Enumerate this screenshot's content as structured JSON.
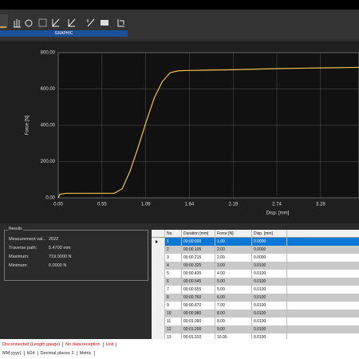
{
  "toolbar": {
    "tab": "GRAPHIC"
  },
  "chart_data": {
    "type": "line",
    "x_label": "Disp. [mm]",
    "y_label": "Force [N]",
    "x": [
      0,
      0.02,
      0.1,
      0.4,
      0.7,
      0.8,
      0.9,
      1.0,
      1.1,
      1.2,
      1.3,
      1.4,
      1.5,
      1.64,
      2.19,
      2.74,
      3.28,
      3.76
    ],
    "series": [
      {
        "color": "#f2c14e",
        "values": [
          0,
          20,
          25,
          25,
          25,
          50,
          150,
          280,
          420,
          550,
          640,
          690,
          700,
          702,
          706,
          712,
          716,
          719
        ]
      }
    ],
    "xlim": [
      0,
      3.76
    ],
    "ylim": [
      0,
      800
    ],
    "xticks": [
      {
        "value": 0,
        "label": "0.00"
      },
      {
        "value": 0.547,
        "label": "0.55"
      },
      {
        "value": 1.093,
        "label": "1.09"
      },
      {
        "value": 1.64,
        "label": "1.64"
      },
      {
        "value": 2.187,
        "label": "2.19"
      },
      {
        "value": 2.733,
        "label": "2.74"
      },
      {
        "value": 3.28,
        "label": "3.28"
      }
    ],
    "yticks": [
      {
        "value": 0,
        "label": "0.00"
      },
      {
        "value": 200,
        "label": "200.00"
      },
      {
        "value": 400,
        "label": "400.00"
      },
      {
        "value": 600,
        "label": "600.00"
      },
      {
        "value": 800,
        "label": "800.00"
      }
    ],
    "grid": true
  },
  "results": {
    "title": "Results",
    "rows": [
      {
        "label": "Measurement val...",
        "value": "2022"
      },
      {
        "label": "Traverse path:",
        "value": "5.4700 mm"
      },
      {
        "label": "Maximum:",
        "value": "719.0000 N"
      },
      {
        "label": "Minimum:",
        "value": "0.0000 N"
      }
    ]
  },
  "table": {
    "columns": [
      "No.",
      "Duration [mm]",
      "Force [N]",
      "Disp. [mm]"
    ],
    "rows": [
      [
        "1",
        "00:00:000",
        "1.00",
        "0.0000"
      ],
      [
        "2",
        "00:00.105",
        "2.00",
        "0.0000"
      ],
      [
        "3",
        "00:00.215",
        "2.00",
        "0.0000"
      ],
      [
        "4",
        "00:00.325",
        "3.00",
        "0.0100"
      ],
      [
        "5",
        "00:00.435",
        "4.00",
        "0.0100"
      ],
      [
        "6",
        "00:00.545",
        "5.00",
        "0.0100"
      ],
      [
        "7",
        "00:00.655",
        "5.00",
        "0.0100"
      ],
      [
        "8",
        "00:00.760",
        "6.00",
        "0.0100"
      ],
      [
        "9",
        "00:00.870",
        "7.00",
        "0.0100"
      ],
      [
        "10",
        "00:00.980",
        "8.00",
        "0.0100"
      ],
      [
        "11",
        "00:01.090",
        "8.00",
        "0.0100"
      ],
      [
        "12",
        "00:01.200",
        "9.00",
        "0.0100"
      ],
      [
        "13",
        "00:01.310",
        "10.00",
        "0.0100"
      ]
    ]
  },
  "status": {
    "line1": [
      "Disconnected (Length gauge)",
      "No data reception",
      "Unit"
    ],
    "line2": [
      "MM.yyyy)",
      "H24",
      "Decimal places 2",
      "Metric"
    ]
  }
}
